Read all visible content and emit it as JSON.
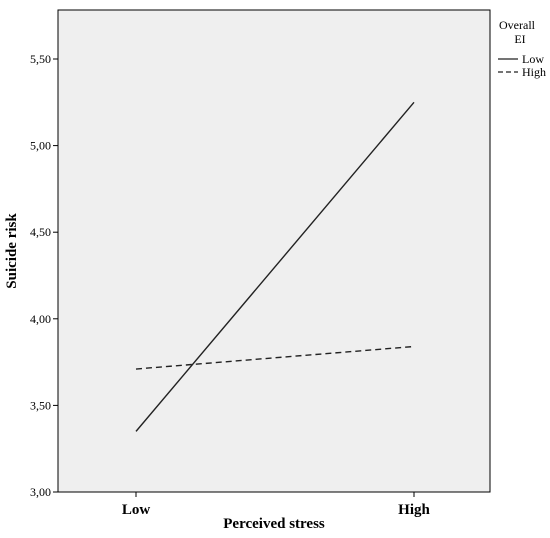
{
  "chart_data": {
    "type": "line",
    "categories": [
      "Low",
      "High"
    ],
    "xlabel": "Perceived stress",
    "ylabel": "Suicide risk",
    "ylim": [
      3.0,
      5.75
    ],
    "yticks": [
      "3,00",
      "3,50",
      "4,00",
      "4,50",
      "5,00",
      "5,50"
    ],
    "ytick_values": [
      3.0,
      3.5,
      4.0,
      4.5,
      5.0,
      5.5
    ],
    "legend": {
      "title_line1": "Overall",
      "title_line2": "EI",
      "placement": "right"
    },
    "series": [
      {
        "name": "Low",
        "values": [
          3.35,
          5.25
        ],
        "style": "solid",
        "color": "#222222"
      },
      {
        "name": "High",
        "values": [
          3.71,
          3.84
        ],
        "style": "dashed",
        "color": "#222222"
      }
    ],
    "grid": false,
    "background": "#efefef"
  }
}
